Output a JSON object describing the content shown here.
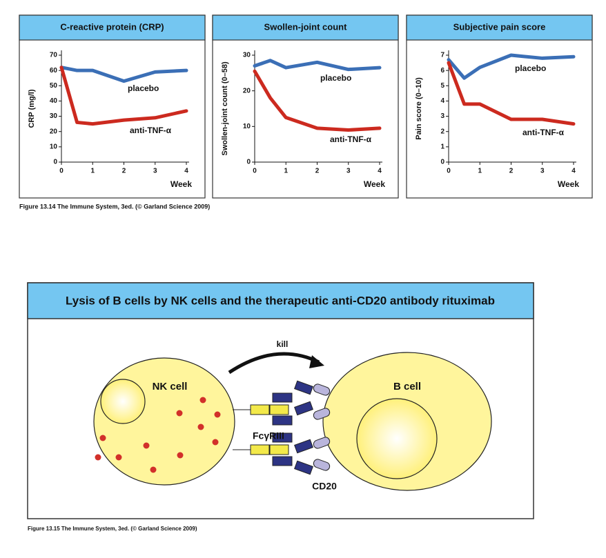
{
  "chart_data": [
    {
      "type": "line",
      "title": "C-reactive protein (CRP)",
      "y_label": "CRP (mg/l)",
      "x_label": "Week",
      "x": [
        0,
        0.5,
        1,
        2,
        3,
        4
      ],
      "xlim": [
        0,
        4
      ],
      "xticks": [
        0,
        1,
        2,
        3,
        4
      ],
      "ylim": [
        0,
        70
      ],
      "yticks": [
        0,
        10,
        20,
        30,
        40,
        50,
        60,
        70
      ],
      "series": [
        {
          "name": "placebo",
          "color": "#3b6fb6",
          "values": [
            62,
            60,
            60,
            53,
            59,
            60
          ]
        },
        {
          "name": "anti-TNF-α",
          "color": "#cc2a1f",
          "values": [
            62,
            26,
            25,
            27.5,
            29,
            33.5
          ]
        }
      ]
    },
    {
      "type": "line",
      "title": "Swollen-joint count",
      "y_label": "Swollen-joint count (0–58)",
      "x_label": "Week",
      "x": [
        0,
        0.5,
        1,
        2,
        3,
        4
      ],
      "xlim": [
        0,
        4
      ],
      "xticks": [
        0,
        1,
        2,
        3,
        4
      ],
      "ylim": [
        0,
        30
      ],
      "yticks": [
        0,
        10,
        20,
        30
      ],
      "series": [
        {
          "name": "placebo",
          "color": "#3b6fb6",
          "values": [
            27,
            28.5,
            26.5,
            28,
            26,
            26.5
          ]
        },
        {
          "name": "anti-TNF-α",
          "color": "#cc2a1f",
          "values": [
            25.5,
            18,
            12.5,
            9.5,
            9,
            9.5
          ]
        }
      ]
    },
    {
      "type": "line",
      "title": "Subjective pain score",
      "y_label": "Pain score (0–10)",
      "x_label": "Week",
      "x": [
        0,
        0.5,
        1,
        2,
        3,
        4
      ],
      "xlim": [
        0,
        4
      ],
      "xticks": [
        0,
        1,
        2,
        3,
        4
      ],
      "ylim": [
        0,
        7
      ],
      "yticks": [
        0,
        1,
        2,
        3,
        4,
        5,
        6,
        7
      ],
      "series": [
        {
          "name": "placebo",
          "color": "#3b6fb6",
          "values": [
            6.7,
            5.5,
            6.2,
            7,
            6.8,
            6.9
          ]
        },
        {
          "name": "anti-TNF-α",
          "color": "#cc2a1f",
          "values": [
            6.5,
            3.8,
            3.8,
            2.8,
            2.8,
            2.5
          ]
        }
      ]
    }
  ],
  "figure_caption": "Figure 13.14 The Immune System, 3ed. (© Garland Science 2009)",
  "diagram": {
    "title": "Lysis of B cells by NK cells and the therapeutic anti-CD20 antibody rituximab",
    "kill": "kill",
    "nk_cell": "NK cell",
    "b_cell": "B cell",
    "receptor": "FcγRIII",
    "antigen": "CD20",
    "caption": "Figure 13.15 The Immune System, 3ed. (© Garland Science 2009)"
  }
}
